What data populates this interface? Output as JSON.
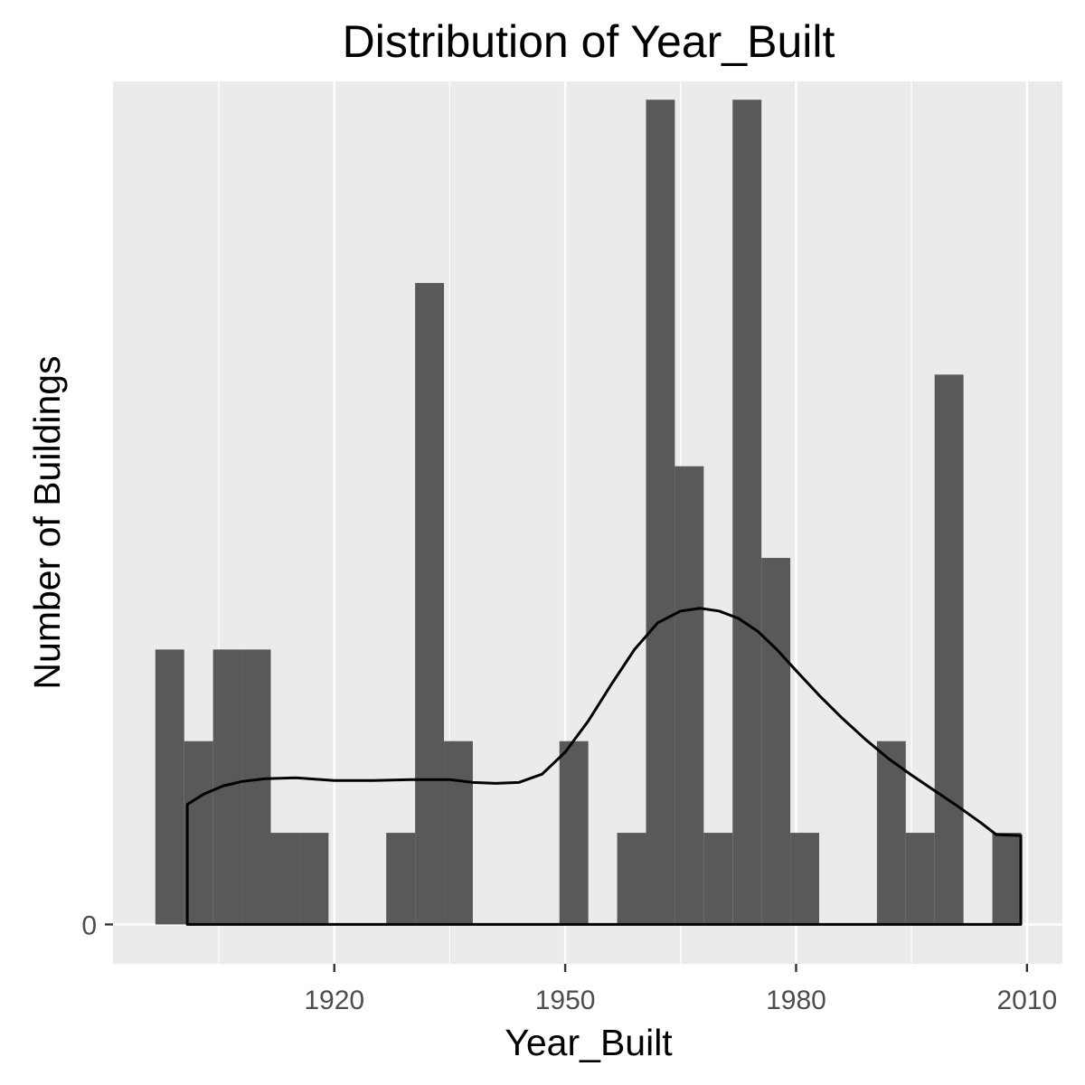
{
  "chart_data": {
    "type": "bar",
    "title": "Distribution of Year_Built",
    "xlabel": "Year_Built",
    "ylabel": "Number of Buildings",
    "xlim": [
      1891.25,
      2014.6
    ],
    "ylim": [
      -0.43,
      9.2
    ],
    "x_ticks": [
      1920,
      1950,
      1980,
      2010
    ],
    "y_ticks": [
      0
    ],
    "x_minor_gridlines": [
      1905,
      1935,
      1965,
      1995
    ],
    "grid": true,
    "bin_width": 3.75,
    "bins": [
      {
        "x": 1898.625,
        "count": 3
      },
      {
        "x": 1902.375,
        "count": 2
      },
      {
        "x": 1906.125,
        "count": 3
      },
      {
        "x": 1909.875,
        "count": 3
      },
      {
        "x": 1913.625,
        "count": 1
      },
      {
        "x": 1917.375,
        "count": 1
      },
      {
        "x": 1921.125,
        "count": 0
      },
      {
        "x": 1924.875,
        "count": 0
      },
      {
        "x": 1928.625,
        "count": 1
      },
      {
        "x": 1932.375,
        "count": 7
      },
      {
        "x": 1936.125,
        "count": 2
      },
      {
        "x": 1939.875,
        "count": 0
      },
      {
        "x": 1943.625,
        "count": 0
      },
      {
        "x": 1947.375,
        "count": 0
      },
      {
        "x": 1951.125,
        "count": 2
      },
      {
        "x": 1954.875,
        "count": 0
      },
      {
        "x": 1958.625,
        "count": 1
      },
      {
        "x": 1962.375,
        "count": 9
      },
      {
        "x": 1966.125,
        "count": 5
      },
      {
        "x": 1969.875,
        "count": 1
      },
      {
        "x": 1973.625,
        "count": 9
      },
      {
        "x": 1977.375,
        "count": 4
      },
      {
        "x": 1981.125,
        "count": 1
      },
      {
        "x": 1984.875,
        "count": 0
      },
      {
        "x": 1988.625,
        "count": 0
      },
      {
        "x": 1992.375,
        "count": 2
      },
      {
        "x": 1996.125,
        "count": 1
      },
      {
        "x": 1999.875,
        "count": 6
      },
      {
        "x": 2003.625,
        "count": 0
      },
      {
        "x": 2007.375,
        "count": 1
      }
    ],
    "density_curve": {
      "x": [
        1900.9,
        1903,
        1905.5,
        1908,
        1911,
        1915,
        1920,
        1925,
        1930,
        1935,
        1938,
        1941,
        1944,
        1947,
        1950,
        1953,
        1956,
        1959,
        1962,
        1965,
        1967.5,
        1970,
        1972.5,
        1975,
        1977.5,
        1980,
        1983,
        1986,
        1989,
        1992,
        1995,
        1998,
        2001,
        2004,
        2006,
        2009.2
      ],
      "y": [
        1.31,
        1.42,
        1.51,
        1.56,
        1.59,
        1.6,
        1.57,
        1.57,
        1.58,
        1.58,
        1.55,
        1.54,
        1.55,
        1.64,
        1.88,
        2.22,
        2.62,
        3.0,
        3.29,
        3.42,
        3.45,
        3.42,
        3.34,
        3.2,
        3.0,
        2.77,
        2.5,
        2.25,
        2.02,
        1.81,
        1.63,
        1.46,
        1.29,
        1.11,
        0.98,
        0.97
      ]
    }
  }
}
